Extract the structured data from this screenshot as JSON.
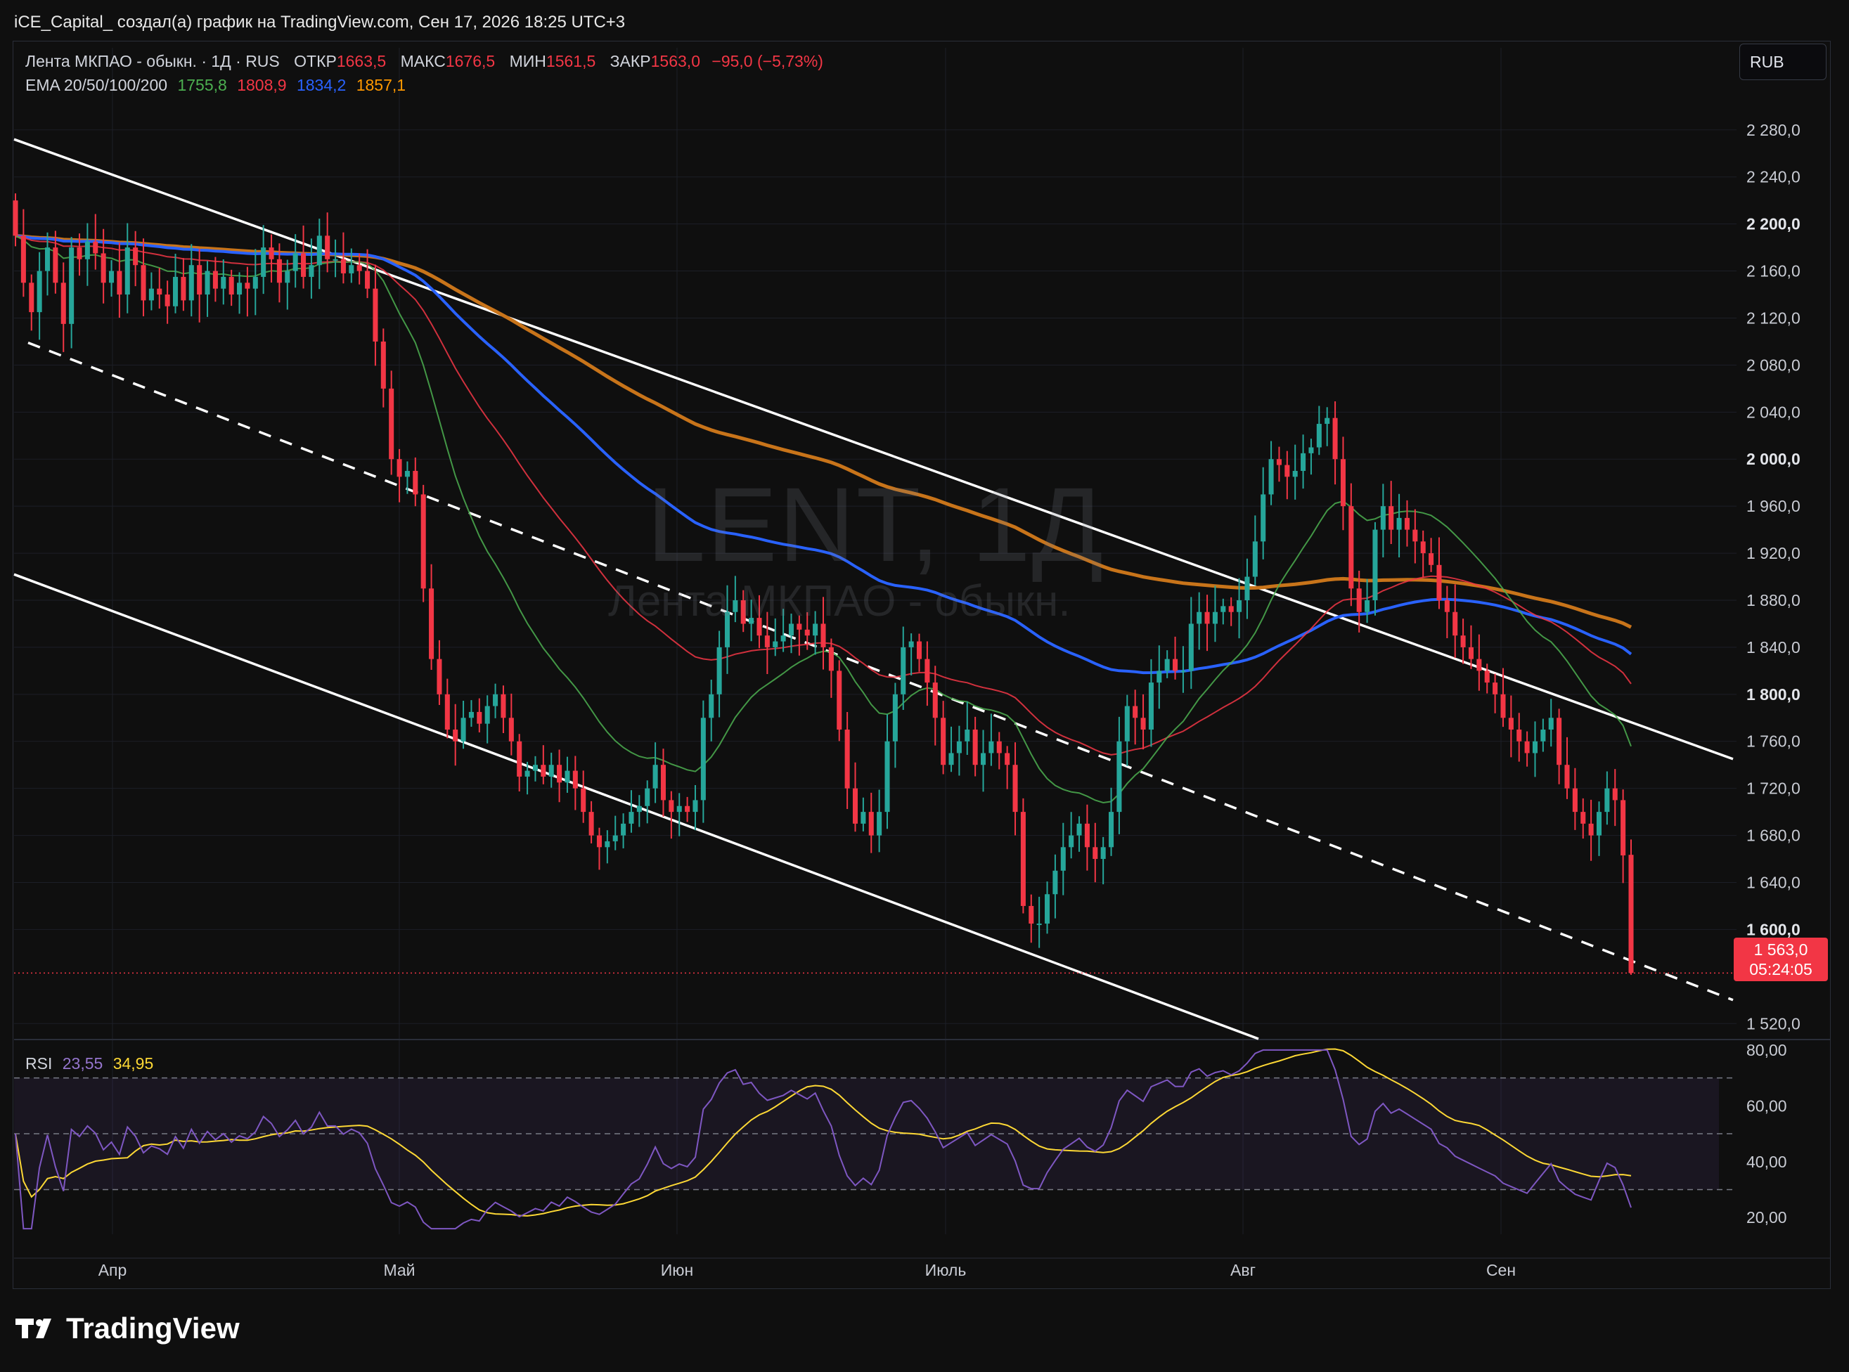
{
  "header": {
    "text": "iCE_Capital_ создал(а) график на TradingView.com, Сен 17, 2026 18:25 UTC+3"
  },
  "legend": {
    "title": "Лента МКПАО - обыкн. · 1Д · RUS",
    "open_label": "ОТКР",
    "open_value": "1663,5",
    "high_label": "МАКС",
    "high_value": "1676,5",
    "low_label": "МИН",
    "low_value": "1561,5",
    "close_label": "ЗАКР",
    "close_value": "1563,0",
    "change": "−95,0 (−5,73%)",
    "ema_label": "EMA 20/50/100/200",
    "ema20": "1755,8",
    "ema50": "1808,9",
    "ema100": "1834,2",
    "ema200": "1857,1",
    "rsi_label": "RSI",
    "rsi_value": "23,55",
    "rsi_ma": "34,95"
  },
  "currency_button": "RUB",
  "last_price": {
    "price": "1 563,0",
    "countdown": "05:24:05"
  },
  "watermark": {
    "line1": "LENT, 1Д",
    "line2": "Лента МКПАО - обыкн."
  },
  "brand": "TradingView",
  "colors": {
    "bg": "#0f0f0f",
    "up": "#26a69a",
    "down": "#f23645",
    "ema20": "#4caf50",
    "ema50": "#f23645",
    "ema100": "#2962ff",
    "ema200": "#c8741a",
    "rsi": "#7e57c2",
    "rsi_ma": "#fdd835"
  },
  "chart_data": [
    {
      "type": "candlestick",
      "title": "Лента МКПАО - обыкн. · 1Д · RUS",
      "x_ticks": [
        "Апр",
        "Май",
        "Июн",
        "Июль",
        "Авг",
        "Сен"
      ],
      "y_ticks": [
        "2 280,0",
        "2 240,0",
        "2 200,0",
        "2 160,0",
        "2 120,0",
        "2 080,0",
        "2 040,0",
        "2 000,0",
        "1 960,0",
        "1 920,0",
        "1 880,0",
        "1 840,0",
        "1 800,0",
        "1 760,0",
        "1 720,0",
        "1 680,0",
        "1 640,0",
        "1 600,0",
        "1 520,0"
      ],
      "y_bold_ticks": [
        "2 200,0",
        "2 000,0",
        "1 800,0",
        "1 600,0"
      ],
      "ylim": [
        1507,
        2302
      ],
      "last": {
        "open": 1663.5,
        "high": 1676.5,
        "low": 1561.5,
        "close": 1563.0
      },
      "close_series": [
        2190,
        2150,
        2125,
        2160,
        2180,
        2150,
        2115,
        2180,
        2170,
        2185,
        2175,
        2150,
        2160,
        2140,
        2180,
        2165,
        2135,
        2145,
        2140,
        2130,
        2155,
        2135,
        2165,
        2140,
        2160,
        2145,
        2155,
        2140,
        2150,
        2145,
        2155,
        2180,
        2170,
        2150,
        2160,
        2175,
        2155,
        2165,
        2190,
        2170,
        2170,
        2158,
        2165,
        2160,
        2145,
        2100,
        2060,
        2000,
        1985,
        1990,
        1970,
        1890,
        1830,
        1800,
        1770,
        1760,
        1780,
        1785,
        1775,
        1790,
        1800,
        1780,
        1760,
        1730,
        1735,
        1740,
        1730,
        1740,
        1725,
        1735,
        1720,
        1700,
        1680,
        1670,
        1675,
        1680,
        1690,
        1700,
        1705,
        1720,
        1740,
        1710,
        1700,
        1705,
        1700,
        1710,
        1780,
        1800,
        1840,
        1870,
        1880,
        1860,
        1865,
        1850,
        1840,
        1845,
        1850,
        1860,
        1855,
        1850,
        1860,
        1840,
        1820,
        1770,
        1720,
        1690,
        1700,
        1680,
        1700,
        1760,
        1800,
        1840,
        1845,
        1830,
        1810,
        1780,
        1740,
        1750,
        1760,
        1770,
        1740,
        1750,
        1760,
        1750,
        1740,
        1700,
        1620,
        1605,
        1605,
        1630,
        1650,
        1670,
        1680,
        1690,
        1670,
        1660,
        1670,
        1700,
        1760,
        1790,
        1780,
        1770,
        1810,
        1820,
        1830,
        1820,
        1820,
        1860,
        1870,
        1860,
        1870,
        1875,
        1870,
        1880,
        1900,
        1930,
        1970,
        2000,
        1995,
        1985,
        1990,
        2005,
        2010,
        2030,
        2035,
        2000,
        1960,
        1890,
        1870,
        1880,
        1940,
        1960,
        1940,
        1950,
        1940,
        1930,
        1920,
        1910,
        1880,
        1870,
        1850,
        1840,
        1830,
        1820,
        1810,
        1800,
        1780,
        1770,
        1760,
        1750,
        1760,
        1770,
        1780,
        1740,
        1720,
        1700,
        1690,
        1680,
        1700,
        1720,
        1710,
        1663,
        1563
      ],
      "ema20_last": 1755.8,
      "ema50_last": 1808.9,
      "ema100_last": 1834.2,
      "ema200_last": 1857.1,
      "channel": {
        "upper_start": 2272,
        "upper_end": 1745,
        "middle_start": 2099,
        "middle_end": 1540,
        "lower_start": 1902,
        "lower_end": 1507
      }
    },
    {
      "type": "line",
      "title": "RSI",
      "y_ticks": [
        "80,00",
        "60,00",
        "40,00",
        "20,00"
      ],
      "levels": [
        70,
        50,
        30
      ],
      "ylim": [
        14,
        83
      ],
      "rsi_last": 23.55,
      "rsi_ma_last": 34.95
    }
  ]
}
